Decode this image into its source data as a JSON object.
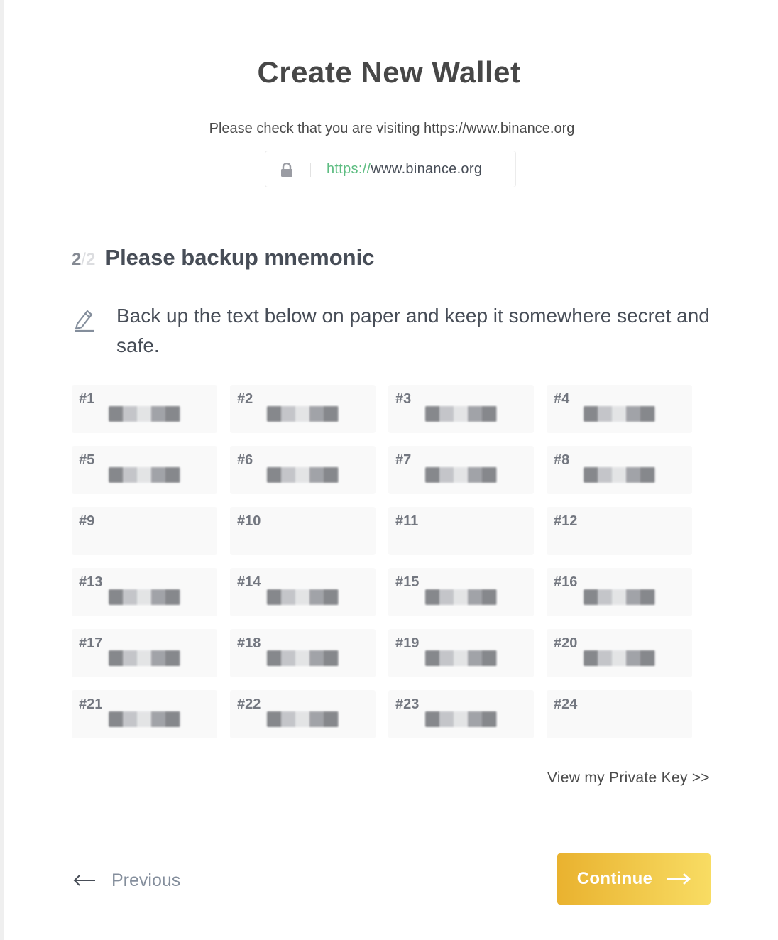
{
  "header": {
    "title": "Create New Wallet",
    "check_notice": "Please check that you are visiting https://www.binance.org",
    "url_scheme": "https://",
    "url_host": "www.binance.org"
  },
  "step": {
    "current": "2",
    "separator": "/",
    "total": "2",
    "title": "Please backup mnemonic"
  },
  "instruction": "Back up the text below on paper and keep it somewhere secret and safe.",
  "mnemonic": {
    "numbers": [
      "#1",
      "#2",
      "#3",
      "#4",
      "#5",
      "#6",
      "#7",
      "#8",
      "#9",
      "#10",
      "#11",
      "#12",
      "#13",
      "#14",
      "#15",
      "#16",
      "#17",
      "#18",
      "#19",
      "#20",
      "#21",
      "#22",
      "#23",
      "#24"
    ]
  },
  "links": {
    "view_private_key": "View my Private Key >>"
  },
  "footer": {
    "previous_label": "Previous",
    "continue_label": "Continue"
  },
  "colors": {
    "accent_start": "#e9b22f",
    "accent_end": "#f8dc63",
    "url_scheme": "#5ebd82",
    "text_dark": "#474d57",
    "text_muted": "#848e9c"
  },
  "icons": {
    "lock": "lock-icon",
    "edit": "pencil-edit-icon",
    "previous": "arrow-left-icon",
    "continue": "arrow-right-icon"
  }
}
